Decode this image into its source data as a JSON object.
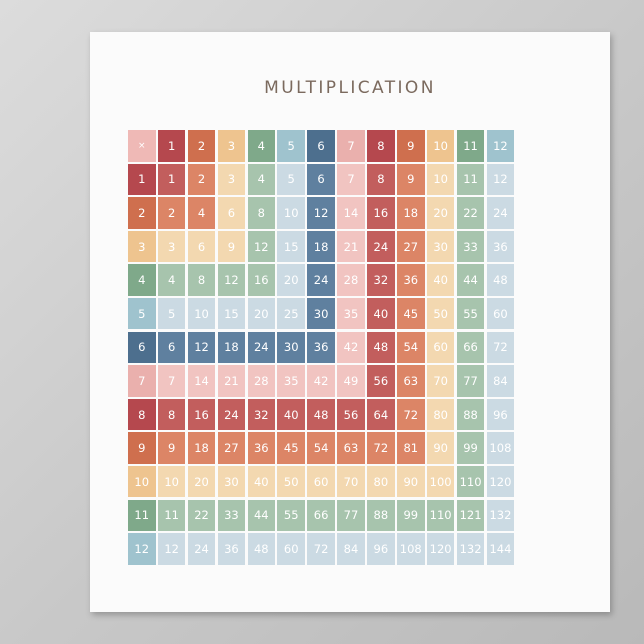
{
  "title": "MULTIPLICATION",
  "corner_label": "×",
  "header": [
    1,
    2,
    3,
    4,
    5,
    6,
    7,
    8,
    9,
    10,
    11,
    12
  ],
  "rows": [
    [
      1,
      2,
      3,
      4,
      5,
      6,
      7,
      8,
      9,
      10,
      11,
      12
    ],
    [
      2,
      4,
      6,
      8,
      10,
      12,
      14,
      16,
      18,
      20,
      22,
      24
    ],
    [
      3,
      6,
      9,
      12,
      15,
      18,
      21,
      24,
      27,
      30,
      33,
      36
    ],
    [
      4,
      8,
      12,
      16,
      20,
      24,
      28,
      32,
      36,
      40,
      44,
      48
    ],
    [
      5,
      10,
      15,
      20,
      25,
      30,
      35,
      40,
      45,
      50,
      55,
      60
    ],
    [
      6,
      12,
      18,
      24,
      30,
      36,
      42,
      48,
      54,
      60,
      66,
      72
    ],
    [
      7,
      14,
      21,
      28,
      35,
      42,
      49,
      56,
      63,
      70,
      77,
      84
    ],
    [
      8,
      16,
      24,
      32,
      40,
      48,
      56,
      64,
      72,
      80,
      88,
      96
    ],
    [
      9,
      18,
      27,
      36,
      45,
      54,
      63,
      72,
      81,
      90,
      99,
      108
    ],
    [
      10,
      20,
      30,
      40,
      50,
      60,
      70,
      80,
      90,
      100,
      110,
      120
    ],
    [
      11,
      22,
      33,
      44,
      55,
      66,
      77,
      88,
      99,
      110,
      121,
      132
    ],
    [
      12,
      24,
      36,
      48,
      60,
      72,
      84,
      96,
      108,
      120,
      132,
      144
    ]
  ],
  "colors": {
    "title": "#7b6a5e",
    "corner": "#efb9b6",
    "header_palette": [
      "#b5484e",
      "#cf6f4e",
      "#eec48f",
      "#7fa98a",
      "#9fc3ce",
      "#4d6f8e",
      "#eab0ad",
      "#b5484e",
      "#cf6f4e",
      "#eec48f",
      "#7fa98a",
      "#9fc3ce"
    ],
    "body_palette": [
      "#c25e5d",
      "#dc8566",
      "#f3d8b0",
      "#a7c4ad",
      "#cbdae3",
      "#5f809f",
      "#f1c4c1",
      "#c25e5d",
      "#dc8566",
      "#f3d8b0",
      "#a7c4ad",
      "#cbdae3"
    ]
  }
}
